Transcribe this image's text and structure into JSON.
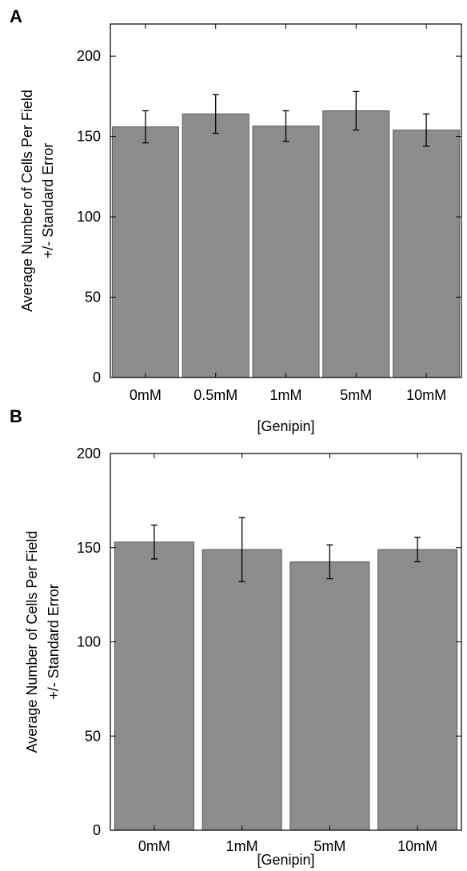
{
  "chart_data": [
    {
      "panel": "A",
      "type": "bar",
      "categories": [
        "0mM",
        "0.5mM",
        "1mM",
        "5mM",
        "10mM"
      ],
      "values": [
        156,
        164,
        156.5,
        166,
        154
      ],
      "errors": [
        10,
        12,
        9.5,
        12,
        10
      ],
      "xlabel": "[Genipin]",
      "ylabel_lines": [
        "Average Number of Cells Per Field",
        "+/- Standard Error"
      ],
      "ylim": [
        0,
        220
      ],
      "yticks": [
        0,
        50,
        100,
        150,
        200
      ],
      "grid": false,
      "bar_color": "#8c8c8c"
    },
    {
      "panel": "B",
      "type": "bar",
      "categories": [
        "0mM",
        "1mM",
        "5mM",
        "10mM"
      ],
      "values": [
        153,
        149,
        142.5,
        149
      ],
      "errors": [
        9,
        17,
        9,
        6.5
      ],
      "xlabel": "[Genipin]",
      "ylabel_lines": [
        "Average Number of Cells Per Field",
        "+/- Standard Error"
      ],
      "ylim": [
        0,
        200
      ],
      "yticks": [
        0,
        50,
        100,
        150,
        200
      ],
      "grid": false,
      "bar_color": "#8c8c8c"
    }
  ]
}
